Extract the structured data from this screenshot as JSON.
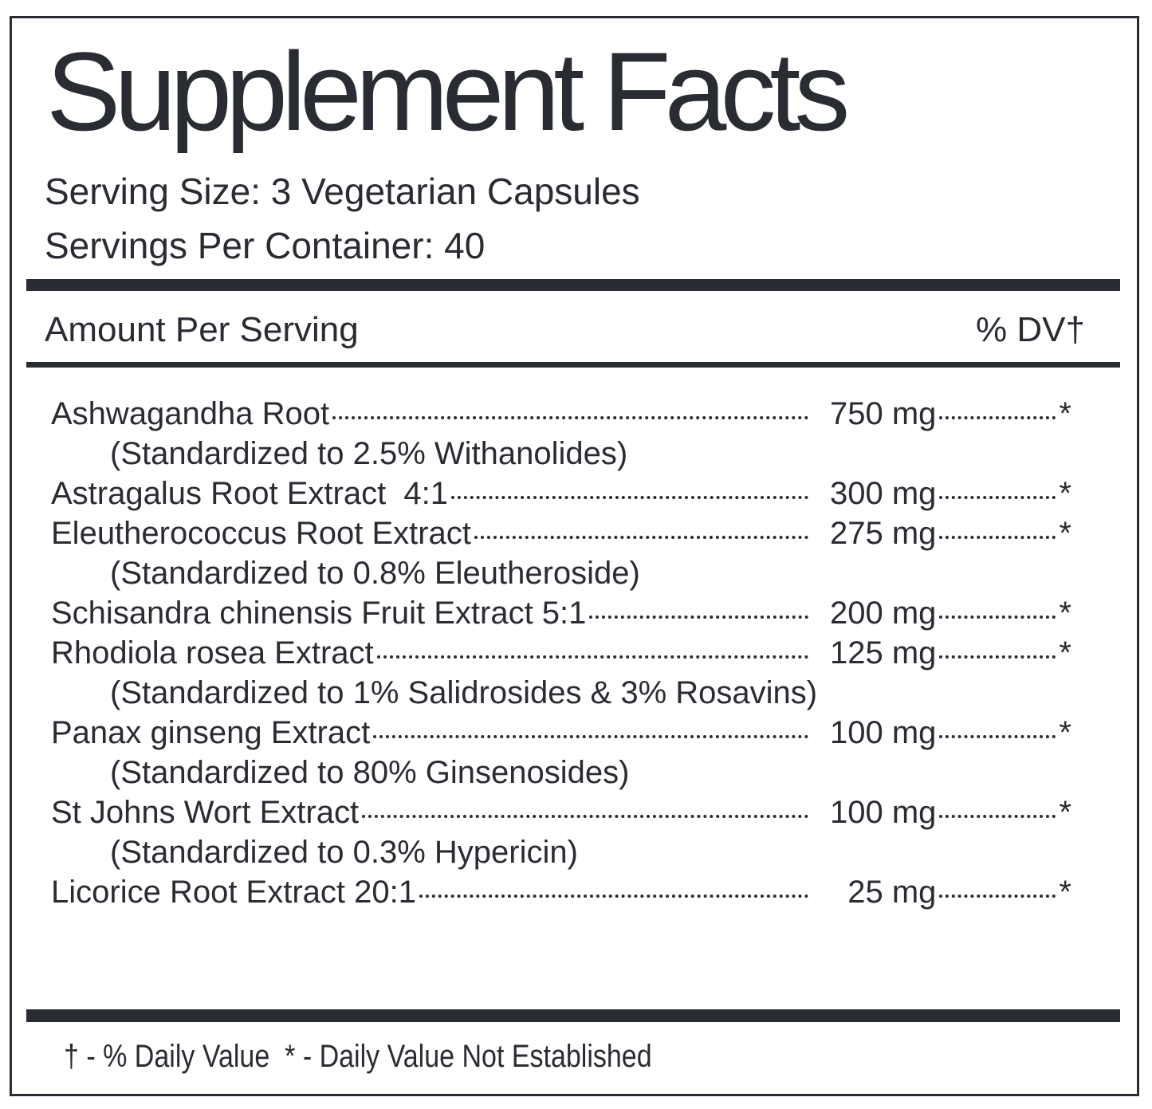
{
  "title": "Supplement Facts",
  "serving_size": "Serving Size: 3 Vegetarian Capsules",
  "servings_per_container": "Servings Per Container: 40",
  "header": {
    "amount": "Amount Per Serving",
    "dv": "% DV†"
  },
  "rows": [
    {
      "name": "Ashwagandha Root",
      "amount": "750 mg",
      "dv": "*",
      "note": "(Standardized to 2.5% Withanolides)"
    },
    {
      "name": "Astragalus Root Extract  4:1",
      "amount": "300 mg",
      "dv": "*"
    },
    {
      "name": "Eleutherococcus Root Extract",
      "amount": "275 mg",
      "dv": "*",
      "note": "(Standardized to 0.8% Eleutheroside)"
    },
    {
      "name": "Schisandra chinensis Fruit Extract 5:1",
      "amount": "200 mg",
      "dv": "*"
    },
    {
      "name": "Rhodiola rosea Extract",
      "amount": "125 mg",
      "dv": "*",
      "note": "(Standardized to 1% Salidrosides & 3% Rosavins)"
    },
    {
      "name": "Panax ginseng Extract",
      "amount": "100 mg",
      "dv": "*",
      "note": "(Standardized to 80% Ginsenosides)"
    },
    {
      "name": "St Johns Wort Extract",
      "amount": "100 mg",
      "dv": "*",
      "note": "(Standardized to 0.3% Hypericin)"
    },
    {
      "name": "Licorice Root Extract 20:1",
      "amount": "25 mg",
      "dv": "*"
    }
  ],
  "footer": "† - % Daily Value  * - Daily Value Not Established"
}
